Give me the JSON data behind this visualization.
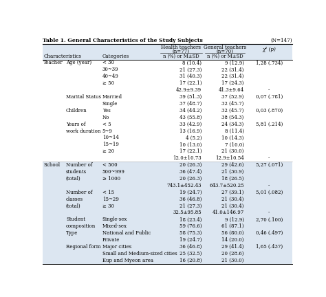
{
  "title": "Table 1. General Characteristics of the Study Subjects",
  "n_label": "(N=147)",
  "bg_white": "#ffffff",
  "bg_blue": "#dce6f1",
  "rows": [
    {
      "section": "Teacher",
      "char": "Age (year)",
      "char_lines": 1,
      "cat": "< 30",
      "ht": "8 (10.4)",
      "gt": "9 (12.9)",
      "chi": "1,28 (.734)"
    },
    {
      "section": "",
      "char": "",
      "char_lines": 0,
      "cat": "30~39",
      "ht": "21 (27.3)",
      "gt": "22 (31.4)",
      "chi": ""
    },
    {
      "section": "",
      "char": "",
      "char_lines": 0,
      "cat": "40~49",
      "ht": "31 (40.3)",
      "gt": "22 (31.4)",
      "chi": ""
    },
    {
      "section": "",
      "char": "",
      "char_lines": 0,
      "cat": "≥ 50",
      "ht": "17 (22.1)",
      "gt": "17 (24.3)",
      "chi": ""
    },
    {
      "section": "",
      "char": "",
      "char_lines": 0,
      "cat": "",
      "ht": "42.9±9.39",
      "gt": "41.3±9.64",
      "chi": "-"
    },
    {
      "section": "",
      "char": "Marital Status",
      "char_lines": 1,
      "cat": "Married",
      "ht": "39 (51.3)",
      "gt": "37 (52.9)",
      "chi": "0,07 (.781)"
    },
    {
      "section": "",
      "char": "",
      "char_lines": 0,
      "cat": "Single",
      "ht": "37 (48.7)",
      "gt": "32 (45.7)",
      "chi": ""
    },
    {
      "section": "",
      "char": "Children",
      "char_lines": 1,
      "cat": "Yes",
      "ht": "34 (44.2)",
      "gt": "32 (45.7)",
      "chi": "0,03 (.870)"
    },
    {
      "section": "",
      "char": "",
      "char_lines": 0,
      "cat": "No",
      "ht": "43 (55.8)",
      "gt": "38 (54.3)",
      "chi": ""
    },
    {
      "section": "",
      "char": "Years of",
      "char_lines": 2,
      "cat": "< 5",
      "ht": "33 (42.9)",
      "gt": "24 (34.3)",
      "chi": "5,81 (.214)"
    },
    {
      "section": "",
      "char": "work duration",
      "char_lines": 0,
      "cat": "5~9",
      "ht": "13 (16.9)",
      "gt": "8 (11.4)",
      "chi": ""
    },
    {
      "section": "",
      "char": "",
      "char_lines": 0,
      "cat": "10~14",
      "ht": "4 (5.2)",
      "gt": "10 (14.3)",
      "chi": ""
    },
    {
      "section": "",
      "char": "",
      "char_lines": 0,
      "cat": "15~19",
      "ht": "10 (13.0)",
      "gt": "7 (10.0)",
      "chi": ""
    },
    {
      "section": "",
      "char": "",
      "char_lines": 0,
      "cat": "≥ 20",
      "ht": "17 (22.1)",
      "gt": "21 (30.0)",
      "chi": ""
    },
    {
      "section": "",
      "char": "",
      "char_lines": 0,
      "cat": "",
      "ht": "12.0±10.73",
      "gt": "12.9±10.54",
      "chi": "-"
    },
    {
      "section": "School",
      "char": "Number of",
      "char_lines": 3,
      "cat": "< 500",
      "ht": "20 (26.3)",
      "gt": "29 (42.6)",
      "chi": "5,27 (.071)"
    },
    {
      "section": "",
      "char": "students",
      "char_lines": 0,
      "cat": "500~999",
      "ht": "36 (47.4)",
      "gt": "21 (30.9)",
      "chi": ""
    },
    {
      "section": "",
      "char": "(total)",
      "char_lines": 0,
      "cat": "≥ 1000",
      "ht": "20 (26.3)",
      "gt": "18 (26.5)",
      "chi": ""
    },
    {
      "section": "",
      "char": "",
      "char_lines": 0,
      "cat": "",
      "ht": "743.1±452.43",
      "gt": "643.7±520.25",
      "chi": "-"
    },
    {
      "section": "",
      "char": "Number of",
      "char_lines": 3,
      "cat": "< 15",
      "ht": "19 (24.7)",
      "gt": "27 (39.1)",
      "chi": "5,01 (.082)"
    },
    {
      "section": "",
      "char": "classes",
      "char_lines": 0,
      "cat": "15~29",
      "ht": "36 (46.8)",
      "gt": "21 (30.4)",
      "chi": ""
    },
    {
      "section": "",
      "char": "(total)",
      "char_lines": 0,
      "cat": "≥ 30",
      "ht": "21 (27.3)",
      "gt": "21 (30.4)",
      "chi": ""
    },
    {
      "section": "",
      "char": "",
      "char_lines": 0,
      "cat": "",
      "ht": "32.5±95.85",
      "gt": "41.0±146.97",
      "chi": "-"
    },
    {
      "section": "",
      "char": "Student",
      "char_lines": 2,
      "cat": "Single-sex",
      "ht": "18 (23.4)",
      "gt": "9 (12.9)",
      "chi": "2,70 (.100)"
    },
    {
      "section": "",
      "char": "composition",
      "char_lines": 0,
      "cat": "Mixed-sex",
      "ht": "59 (76.6)",
      "gt": "61 (87.1)",
      "chi": ""
    },
    {
      "section": "",
      "char": "Type",
      "char_lines": 1,
      "cat": "National and Public",
      "ht": "58 (75.3)",
      "gt": "56 (80.0)",
      "chi": "0,46 (.497)"
    },
    {
      "section": "",
      "char": "",
      "char_lines": 0,
      "cat": "Private",
      "ht": "19 (24.7)",
      "gt": "14 (20.0)",
      "chi": ""
    },
    {
      "section": "",
      "char": "Regional form",
      "char_lines": 1,
      "cat": "Major cities",
      "ht": "36 (46.8)",
      "gt": "29 (41.4)",
      "chi": "1,65 (.437)"
    },
    {
      "section": "",
      "char": "",
      "char_lines": 0,
      "cat": "Small and Medium-sized cities",
      "ht": "25 (32.5)",
      "gt": "20 (28.6)",
      "chi": ""
    },
    {
      "section": "",
      "char": "",
      "char_lines": 0,
      "cat": "Eup and Myeon area",
      "ht": "16 (20.8)",
      "gt": "21 (30.0)",
      "chi": ""
    }
  ]
}
